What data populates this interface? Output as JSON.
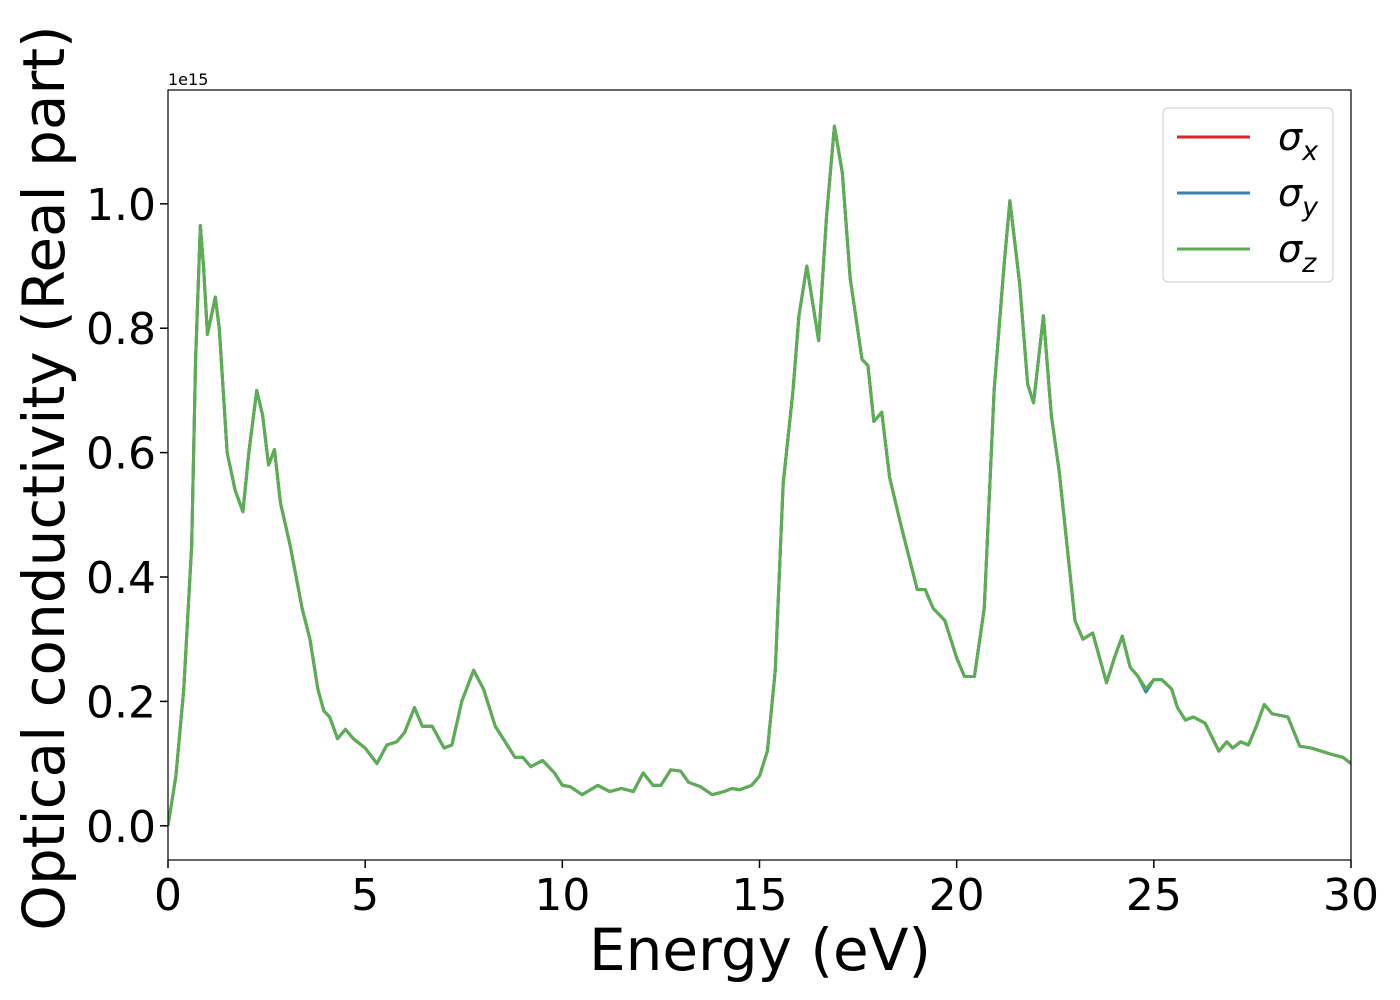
{
  "chart_data": {
    "type": "line",
    "xlabel": "Energy (eV)",
    "ylabel": "Optical conductivity (Real part)",
    "offset_label": "1e15",
    "xlim": [
      0,
      30
    ],
    "ylim": [
      -0.055,
      1.183
    ],
    "xticks": [
      0,
      5,
      10,
      15,
      20,
      25,
      30
    ],
    "yticks": [
      {
        "value": 0,
        "label": "0.0"
      },
      {
        "value": 0.2,
        "label": "0.2"
      },
      {
        "value": 0.4,
        "label": "0.4"
      },
      {
        "value": 0.6,
        "label": "0.6"
      },
      {
        "value": 0.8,
        "label": "0.8"
      },
      {
        "value": 1.0,
        "label": "1.0"
      }
    ],
    "legend": "upper right",
    "x": [
      0,
      0.2,
      0.4,
      0.6,
      0.7,
      0.82,
      0.9,
      1.0,
      1.2,
      1.3,
      1.5,
      1.7,
      1.9,
      2.05,
      2.25,
      2.4,
      2.55,
      2.7,
      2.85,
      3.1,
      3.4,
      3.6,
      3.8,
      3.95,
      4.1,
      4.3,
      4.5,
      4.7,
      5.0,
      5.3,
      5.55,
      5.8,
      6.0,
      6.25,
      6.45,
      6.7,
      7.0,
      7.2,
      7.45,
      7.75,
      8.0,
      8.3,
      8.5,
      8.8,
      9.0,
      9.2,
      9.5,
      9.8,
      10.0,
      10.2,
      10.5,
      10.9,
      11.2,
      11.5,
      11.8,
      12.05,
      12.3,
      12.5,
      12.75,
      13.0,
      13.2,
      13.5,
      13.8,
      14.1,
      14.3,
      14.5,
      14.8,
      15.0,
      15.2,
      15.4,
      15.6,
      15.85,
      16.0,
      16.2,
      16.35,
      16.5,
      16.7,
      16.9,
      17.1,
      17.3,
      17.6,
      17.75,
      17.9,
      18.1,
      18.3,
      18.6,
      18.8,
      19.0,
      19.2,
      19.4,
      19.7,
      20.0,
      20.2,
      20.45,
      20.7,
      20.95,
      21.2,
      21.35,
      21.6,
      21.8,
      21.95,
      22.2,
      22.4,
      22.6,
      22.8,
      23.0,
      23.2,
      23.45,
      23.8,
      24.0,
      24.2,
      24.4,
      24.6,
      24.8,
      25.0,
      25.2,
      25.45,
      25.6,
      25.8,
      26.0,
      26.3,
      26.65,
      26.85,
      27.0,
      27.2,
      27.4,
      27.6,
      27.8,
      28.0,
      28.4,
      28.7,
      29.0,
      29.5,
      29.8,
      30.0
    ],
    "series": [
      {
        "name": "σx",
        "color": "#d62728",
        "values": [
          0,
          0.08,
          0.22,
          0.45,
          0.75,
          0.965,
          0.9,
          0.79,
          0.85,
          0.8,
          0.6,
          0.54,
          0.505,
          0.6,
          0.7,
          0.66,
          0.58,
          0.605,
          0.52,
          0.45,
          0.35,
          0.3,
          0.22,
          0.185,
          0.175,
          0.14,
          0.155,
          0.14,
          0.125,
          0.1,
          0.13,
          0.135,
          0.15,
          0.19,
          0.16,
          0.16,
          0.125,
          0.13,
          0.2,
          0.25,
          0.22,
          0.16,
          0.14,
          0.11,
          0.11,
          0.095,
          0.105,
          0.085,
          0.065,
          0.063,
          0.05,
          0.065,
          0.055,
          0.06,
          0.055,
          0.085,
          0.065,
          0.065,
          0.09,
          0.088,
          0.07,
          0.063,
          0.05,
          0.055,
          0.06,
          0.058,
          0.065,
          0.08,
          0.12,
          0.25,
          0.55,
          0.7,
          0.82,
          0.9,
          0.84,
          0.78,
          0.98,
          1.125,
          1.05,
          0.88,
          0.75,
          0.74,
          0.65,
          0.665,
          0.56,
          0.48,
          0.43,
          0.38,
          0.38,
          0.35,
          0.33,
          0.27,
          0.24,
          0.24,
          0.35,
          0.7,
          0.9,
          1.005,
          0.87,
          0.71,
          0.68,
          0.82,
          0.66,
          0.57,
          0.45,
          0.33,
          0.3,
          0.31,
          0.23,
          0.27,
          0.305,
          0.255,
          0.24,
          0.22,
          0.235,
          0.235,
          0.22,
          0.19,
          0.17,
          0.175,
          0.165,
          0.12,
          0.135,
          0.125,
          0.135,
          0.13,
          0.16,
          0.195,
          0.18,
          0.175,
          0.128,
          0.125,
          0.115,
          0.11,
          0.1
        ]
      },
      {
        "name": "σy",
        "color": "#3a7fb5",
        "values": [
          0,
          0.08,
          0.22,
          0.45,
          0.75,
          0.965,
          0.9,
          0.79,
          0.85,
          0.8,
          0.6,
          0.54,
          0.505,
          0.6,
          0.7,
          0.66,
          0.58,
          0.605,
          0.52,
          0.45,
          0.35,
          0.3,
          0.22,
          0.185,
          0.175,
          0.14,
          0.155,
          0.14,
          0.125,
          0.1,
          0.13,
          0.135,
          0.15,
          0.19,
          0.16,
          0.16,
          0.125,
          0.13,
          0.2,
          0.25,
          0.22,
          0.16,
          0.14,
          0.11,
          0.11,
          0.095,
          0.105,
          0.085,
          0.065,
          0.063,
          0.05,
          0.065,
          0.055,
          0.06,
          0.055,
          0.085,
          0.065,
          0.065,
          0.09,
          0.088,
          0.07,
          0.063,
          0.05,
          0.055,
          0.06,
          0.058,
          0.065,
          0.08,
          0.12,
          0.25,
          0.55,
          0.7,
          0.82,
          0.9,
          0.84,
          0.78,
          0.98,
          1.125,
          1.05,
          0.88,
          0.75,
          0.74,
          0.65,
          0.665,
          0.56,
          0.48,
          0.43,
          0.38,
          0.38,
          0.35,
          0.33,
          0.27,
          0.24,
          0.24,
          0.35,
          0.7,
          0.9,
          1.005,
          0.87,
          0.71,
          0.68,
          0.82,
          0.66,
          0.57,
          0.45,
          0.33,
          0.3,
          0.31,
          0.23,
          0.27,
          0.305,
          0.255,
          0.24,
          0.215,
          0.235,
          0.235,
          0.22,
          0.19,
          0.17,
          0.175,
          0.165,
          0.12,
          0.135,
          0.125,
          0.135,
          0.13,
          0.16,
          0.195,
          0.18,
          0.175,
          0.128,
          0.125,
          0.115,
          0.11,
          0.1
        ]
      },
      {
        "name": "σz",
        "color": "#5aaf50",
        "values": [
          0,
          0.08,
          0.22,
          0.45,
          0.75,
          0.965,
          0.9,
          0.79,
          0.85,
          0.8,
          0.6,
          0.54,
          0.505,
          0.6,
          0.7,
          0.66,
          0.58,
          0.605,
          0.52,
          0.45,
          0.35,
          0.3,
          0.22,
          0.185,
          0.175,
          0.14,
          0.155,
          0.14,
          0.125,
          0.1,
          0.13,
          0.135,
          0.15,
          0.19,
          0.16,
          0.16,
          0.125,
          0.13,
          0.2,
          0.25,
          0.22,
          0.16,
          0.14,
          0.11,
          0.11,
          0.095,
          0.105,
          0.085,
          0.065,
          0.063,
          0.05,
          0.065,
          0.055,
          0.06,
          0.055,
          0.085,
          0.065,
          0.065,
          0.09,
          0.088,
          0.07,
          0.063,
          0.05,
          0.055,
          0.06,
          0.058,
          0.065,
          0.08,
          0.12,
          0.25,
          0.55,
          0.7,
          0.82,
          0.9,
          0.84,
          0.78,
          0.98,
          1.125,
          1.05,
          0.88,
          0.75,
          0.74,
          0.65,
          0.665,
          0.56,
          0.48,
          0.43,
          0.38,
          0.38,
          0.35,
          0.33,
          0.27,
          0.24,
          0.24,
          0.35,
          0.7,
          0.9,
          1.005,
          0.87,
          0.71,
          0.68,
          0.82,
          0.66,
          0.57,
          0.45,
          0.33,
          0.3,
          0.31,
          0.23,
          0.27,
          0.305,
          0.255,
          0.24,
          0.22,
          0.235,
          0.235,
          0.22,
          0.19,
          0.17,
          0.175,
          0.165,
          0.12,
          0.135,
          0.125,
          0.135,
          0.13,
          0.16,
          0.195,
          0.18,
          0.175,
          0.128,
          0.125,
          0.115,
          0.11,
          0.1
        ]
      }
    ]
  }
}
